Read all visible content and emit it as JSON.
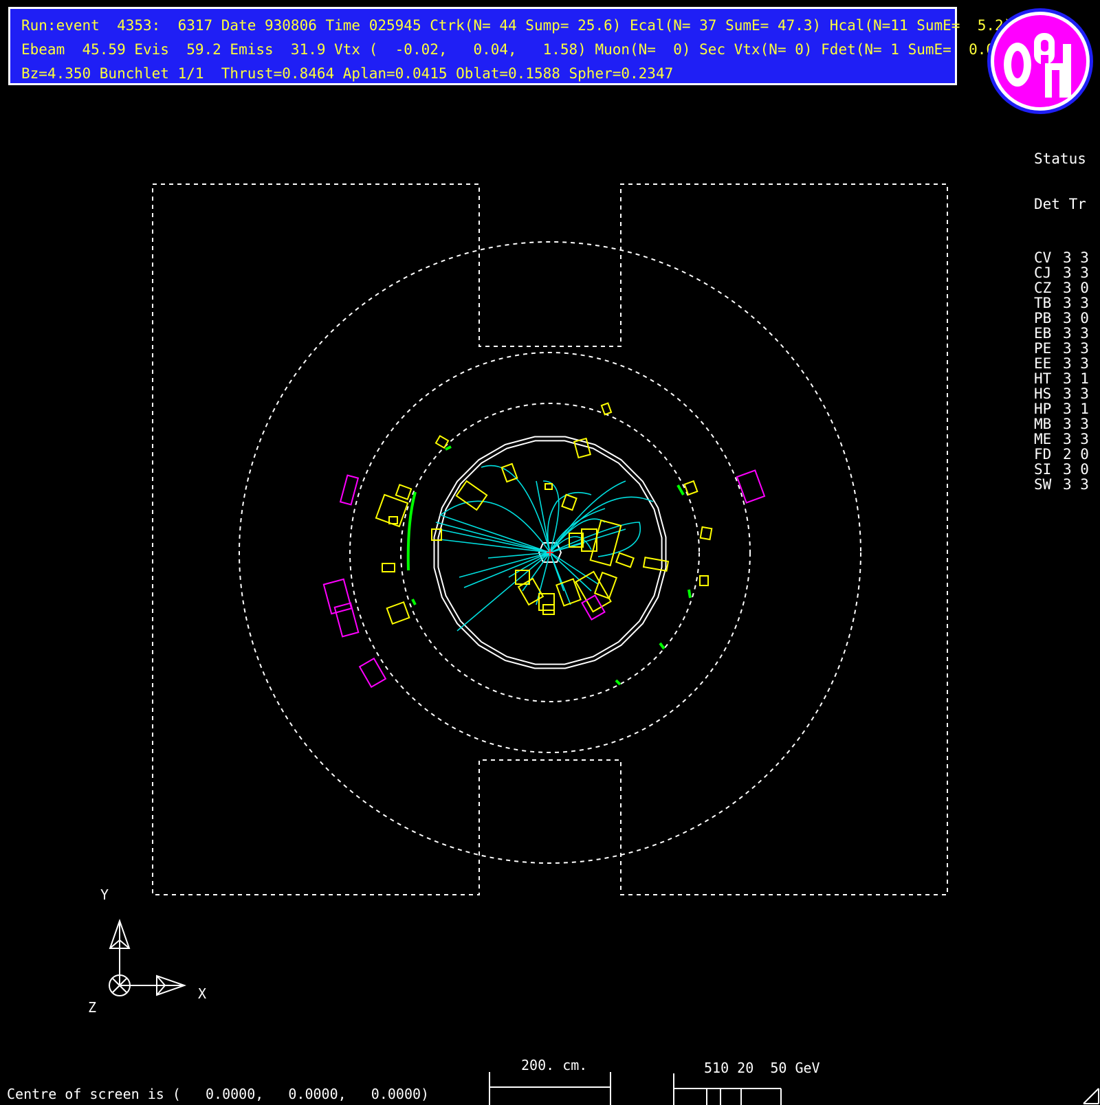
{
  "header": {
    "line1": "Run:event  4353:  6317 Date 930806 Time 025945 Ctrk(N= 44 Sump= 25.6) Ecal(N= 37 SumE= 47.3) Hcal(N=11 SumE=  5.2)",
    "line2": "Ebeam  45.59 Evis  59.2 Emiss  31.9 Vtx (  -0.02,   0.04,   1.58) Muon(N=  0) Sec Vtx(N= 0) Fdet(N= 1 SumE=  0.0)",
    "line3": "Bz=4.350 Bunchlet 1/1  Thrust=0.8464 Aplan=0.0415 Oblat=0.1588 Spher=0.2347"
  },
  "status": {
    "title": "Status",
    "head": "Det Tr",
    "rows": [
      {
        "det": "CV",
        "s": "3 3"
      },
      {
        "det": "CJ",
        "s": "3 3"
      },
      {
        "det": "CZ",
        "s": "3 0"
      },
      {
        "det": "TB",
        "s": "3 3"
      },
      {
        "det": "PB",
        "s": "3 0"
      },
      {
        "det": "EB",
        "s": "3 3"
      },
      {
        "det": "PE",
        "s": "3 3"
      },
      {
        "det": "EE",
        "s": "3 3"
      },
      {
        "det": "HT",
        "s": "3 1"
      },
      {
        "det": "HS",
        "s": "3 3"
      },
      {
        "det": "HP",
        "s": "3 1"
      },
      {
        "det": "MB",
        "s": "3 3"
      },
      {
        "det": "ME",
        "s": "3 3"
      },
      {
        "det": "FD",
        "s": "2 0"
      },
      {
        "det": "SI",
        "s": "3 0"
      },
      {
        "det": "SW",
        "s": "3 3"
      }
    ]
  },
  "axes": {
    "y": "Y",
    "x": "X",
    "z": "Z"
  },
  "scale": {
    "length_label": "200. cm.",
    "energy_label": "510 20  50 GeV"
  },
  "footer": {
    "centre": "Centre of screen is (   0.0000,   0.0000,   0.0000)"
  },
  "colors": {
    "header_bg": "#1f1ff5",
    "header_text": "#ffff3a",
    "track": "#00e0e0",
    "ecal": "#ffff00",
    "hcal": "#ff00ff",
    "tof": "#00ff00",
    "logo_fill": "#ff00ff",
    "logo_bg": "#ffffff",
    "logo_ring": "#1f1ff5"
  }
}
